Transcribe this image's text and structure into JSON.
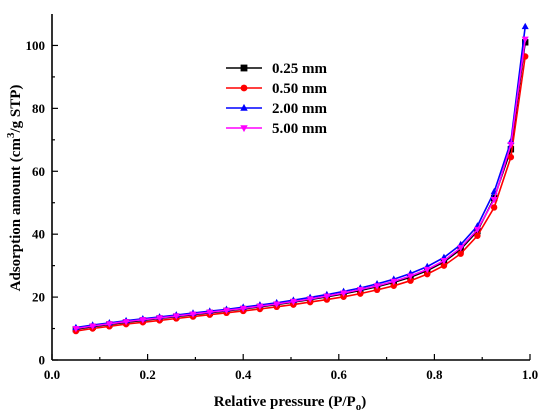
{
  "chart_data": {
    "type": "line",
    "title": "",
    "xlabel": "Relative pressure (P/P",
    "xlabel_sub": "o",
    "xlabel_end": ")",
    "ylabel": "Adsorption amount (cm",
    "ylabel_sup": "3",
    "ylabel_end": "/g STP)",
    "xlim": [
      0.0,
      1.0
    ],
    "ylim": [
      0,
      110
    ],
    "xticks": [
      0.0,
      0.2,
      0.4,
      0.6,
      0.8,
      1.0
    ],
    "xtick_labels": [
      "0.0",
      "0.2",
      "0.4",
      "0.6",
      "0.8",
      "1.0"
    ],
    "yticks": [
      0,
      20,
      40,
      60,
      80,
      100
    ],
    "ytick_labels": [
      "0",
      "20",
      "40",
      "60",
      "80",
      "100"
    ],
    "grid": false,
    "legend_position": "top-left",
    "x": [
      0.05,
      0.085,
      0.12,
      0.155,
      0.19,
      0.225,
      0.26,
      0.295,
      0.33,
      0.365,
      0.4,
      0.435,
      0.47,
      0.505,
      0.54,
      0.575,
      0.61,
      0.645,
      0.68,
      0.715,
      0.75,
      0.785,
      0.82,
      0.855,
      0.89,
      0.925,
      0.96,
      0.99
    ],
    "series": [
      {
        "name": "0.25 mm",
        "color": "#000000",
        "marker": "square",
        "values": [
          9.8,
          10.6,
          11.3,
          12.0,
          12.6,
          13.2,
          13.8,
          14.4,
          15.0,
          15.6,
          16.2,
          16.9,
          17.6,
          18.4,
          19.2,
          20.1,
          21.0,
          22.1,
          23.3,
          24.7,
          26.3,
          28.4,
          31.2,
          35.2,
          41.0,
          51.5,
          67.0,
          101.0
        ]
      },
      {
        "name": "0.50 mm",
        "color": "#ff0000",
        "marker": "circle",
        "values": [
          9.2,
          10.0,
          10.7,
          11.4,
          12.0,
          12.6,
          13.2,
          13.8,
          14.4,
          15.0,
          15.6,
          16.2,
          16.9,
          17.6,
          18.4,
          19.2,
          20.1,
          21.1,
          22.3,
          23.6,
          25.2,
          27.3,
          30.0,
          33.8,
          39.5,
          48.5,
          64.5,
          96.5
        ]
      },
      {
        "name": "2.00 mm",
        "color": "#0000ff",
        "marker": "triangle-up",
        "values": [
          10.3,
          11.1,
          11.8,
          12.5,
          13.1,
          13.7,
          14.3,
          14.9,
          15.5,
          16.1,
          16.8,
          17.5,
          18.2,
          19.0,
          19.9,
          20.8,
          21.8,
          22.9,
          24.2,
          25.7,
          27.5,
          29.7,
          32.6,
          36.7,
          42.6,
          53.5,
          69.5,
          106.0
        ]
      },
      {
        "name": "5.00 mm",
        "color": "#ff00ff",
        "marker": "triangle-down",
        "values": [
          10.0,
          10.8,
          11.5,
          12.2,
          12.8,
          13.4,
          14.0,
          14.6,
          15.2,
          15.8,
          16.4,
          17.1,
          17.8,
          18.6,
          19.4,
          20.3,
          21.3,
          22.4,
          23.6,
          25.0,
          26.7,
          28.8,
          31.6,
          35.7,
          41.5,
          51.0,
          68.5,
          102.0
        ]
      }
    ]
  }
}
